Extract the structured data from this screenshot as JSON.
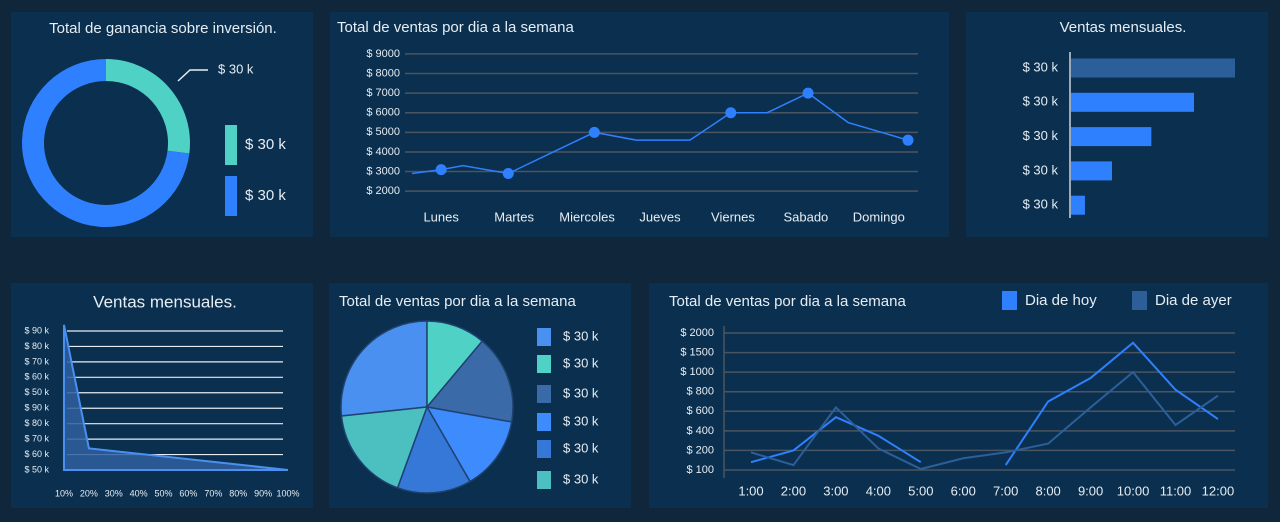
{
  "chart_data": [
    {
      "type": "donut",
      "title": "Total de ganancia sobre inversión.",
      "annotation": "$ 30 k",
      "categories": [
        "$ 30 k",
        "$ 30 k"
      ],
      "values": [
        27,
        73
      ],
      "colors": [
        "#4fd1c5",
        "#2f80ff"
      ]
    },
    {
      "type": "line",
      "title": "Total de ventas por dia a la semana",
      "xlim": [
        -0.4,
        6.4
      ],
      "xticks": [
        {
          "value": 0,
          "label": "Lunes"
        },
        {
          "value": 1,
          "label": "Martes"
        },
        {
          "value": 2,
          "label": "Miercoles"
        },
        {
          "value": 3,
          "label": "Jueves"
        },
        {
          "value": 4,
          "label": "Viernes"
        },
        {
          "value": 5,
          "label": "Sabado"
        },
        {
          "value": 6,
          "label": "Domingo"
        }
      ],
      "ylim": [
        1600,
        9200
      ],
      "yticks": [
        {
          "value": 2000,
          "label": "$ 2000"
        },
        {
          "value": 3000,
          "label": "$ 3000"
        },
        {
          "value": 4000,
          "label": "$ 4000"
        },
        {
          "value": 5000,
          "label": "$ 5000"
        },
        {
          "value": 6000,
          "label": "$ 6000"
        },
        {
          "value": 7000,
          "label": "$ 7000"
        },
        {
          "value": 8000,
          "label": "$ 8000"
        },
        {
          "value": 9000,
          "label": "$ 9000"
        }
      ],
      "grid": true,
      "series": [
        {
          "color": "#2f80ff",
          "mode": "line",
          "x": [
            -0.4,
            0,
            0.3,
            0.92,
            2.1,
            2.68,
            3.41,
            3.97,
            4.47,
            5.03,
            5.58,
            6.4
          ],
          "values": [
            2900,
            3100,
            3300,
            2900,
            5000,
            4600,
            4600,
            6000,
            6000,
            7000,
            5500,
            4600
          ]
        },
        {
          "color": "#2f80ff",
          "mode": "markers",
          "x": [
            0,
            0.92,
            2.1,
            3.97,
            5.03,
            6.4
          ],
          "values": [
            3100,
            2900,
            5000,
            6000,
            7000,
            4600
          ]
        }
      ]
    },
    {
      "type": "barh",
      "title": "Ventas mensuales.",
      "categories": [
        "$ 30 k",
        "$ 30 k",
        "$ 30 k",
        "$ 30 k",
        "$ 30 k"
      ],
      "values": [
        100,
        75,
        49,
        25,
        8.5
      ],
      "colors": [
        "#2c5f9a",
        "#2f80ff",
        "#2f80ff",
        "#2f80ff",
        "#2f80ff"
      ]
    },
    {
      "type": "area",
      "title": "Ventas mensuales.",
      "xlim": [
        10,
        100
      ],
      "xticks": [
        {
          "value": 10,
          "label": "10%"
        },
        {
          "value": 20,
          "label": "20%"
        },
        {
          "value": 30,
          "label": "30%"
        },
        {
          "value": 40,
          "label": "40%"
        },
        {
          "value": 50,
          "label": "50%"
        },
        {
          "value": 60,
          "label": "60%"
        },
        {
          "value": 70,
          "label": "70%"
        },
        {
          "value": 80,
          "label": "80%"
        },
        {
          "value": 90,
          "label": "90%"
        },
        {
          "value": 100,
          "label": "100%"
        }
      ],
      "ycategories": [
        "$ 50 k",
        "$ 60 k",
        "$ 70 k",
        "$ 80 k",
        "$ 90 k",
        "$ 50 k",
        "$ 60 k",
        "$ 70 k",
        "$ 80 k",
        "$ 90 k"
      ],
      "x": [
        10,
        20,
        100
      ],
      "values": [
        9.4,
        1.4,
        0
      ],
      "color": "#2f5fa0"
    },
    {
      "type": "pie",
      "title": "Total de ventas por dia a la semana",
      "categories": [
        "$ 30 k",
        "$ 30 k",
        "$ 30 k",
        "$ 30 k",
        "$ 30 k",
        "$ 30 k"
      ],
      "values": [
        96,
        40,
        60,
        50,
        50,
        64
      ],
      "colors": [
        "#4a90f0",
        "#4fd1c5",
        "#3a6aa8",
        "#3d8bfd",
        "#3578d8",
        "#4cc0c0"
      ]
    },
    {
      "type": "line",
      "title": "Total de ventas por dia a la semana",
      "legend": "top-right",
      "yscale": "tick-spaced",
      "categories": [
        "1:00",
        "2:00",
        "3:00",
        "4:00",
        "5:00",
        "6:00",
        "7:00",
        "8:00",
        "9:00",
        "10:00",
        "11:00",
        "12:00"
      ],
      "ylim": [
        100,
        2000
      ],
      "yticks": [
        {
          "value": 100,
          "label": "$ 100"
        },
        {
          "value": 200,
          "label": "$ 200"
        },
        {
          "value": 400,
          "label": "$ 400"
        },
        {
          "value": 600,
          "label": "$ 600"
        },
        {
          "value": 800,
          "label": "$ 800"
        },
        {
          "value": 1000,
          "label": "$ 1000"
        },
        {
          "value": 1500,
          "label": "$ 1500"
        },
        {
          "value": 2000,
          "label": "$ 2000"
        }
      ],
      "grid": true,
      "series": [
        {
          "name": "Dia de hoy",
          "color": "#2f80ff",
          "values": [
            140,
            200,
            540,
            350,
            140,
            null,
            125,
            700,
            940,
            1750,
            820,
            520
          ]
        },
        {
          "name": "Dia de ayer",
          "color": "#2c5f9a",
          "values": [
            190,
            125,
            640,
            220,
            105,
            160,
            190,
            270,
            640,
            1000,
            460,
            760
          ]
        }
      ]
    }
  ]
}
